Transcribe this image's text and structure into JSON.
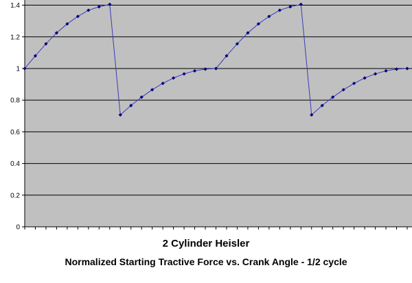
{
  "chart_data": {
    "type": "line",
    "title": "2 Cylinder Heisler",
    "subtitle": "Normalized Starting Tractive Force vs. Crank Angle - 1/2 cycle",
    "xlabel": "",
    "ylabel": "",
    "ylim": [
      0,
      1.45
    ],
    "yticks": [
      0,
      0.2,
      0.4,
      0.6,
      0.8,
      1,
      1.2,
      1.4
    ],
    "ytick_labels": [
      "0",
      "0.2",
      "0.4",
      "0.6",
      "0.8",
      "1",
      "1.2",
      "1.4"
    ],
    "grid": true,
    "legend": "none",
    "colors": {
      "plot_background": "#c0c0c0",
      "gridline": "#000000",
      "series_line": "#3a3ab8",
      "marker": "#000080"
    },
    "series": [
      {
        "values": [
          1.0,
          1.08,
          1.156,
          1.225,
          1.282,
          1.329,
          1.368,
          1.39,
          1.405,
          0.707,
          0.766,
          0.819,
          0.866,
          0.906,
          0.94,
          0.966,
          0.985,
          0.996,
          1.0,
          1.08,
          1.156,
          1.225,
          1.282,
          1.329,
          1.368,
          1.39,
          1.405,
          0.707,
          0.766,
          0.819,
          0.866,
          0.906,
          0.94,
          0.966,
          0.985,
          0.996,
          1.0
        ]
      }
    ],
    "x_count": 37
  }
}
